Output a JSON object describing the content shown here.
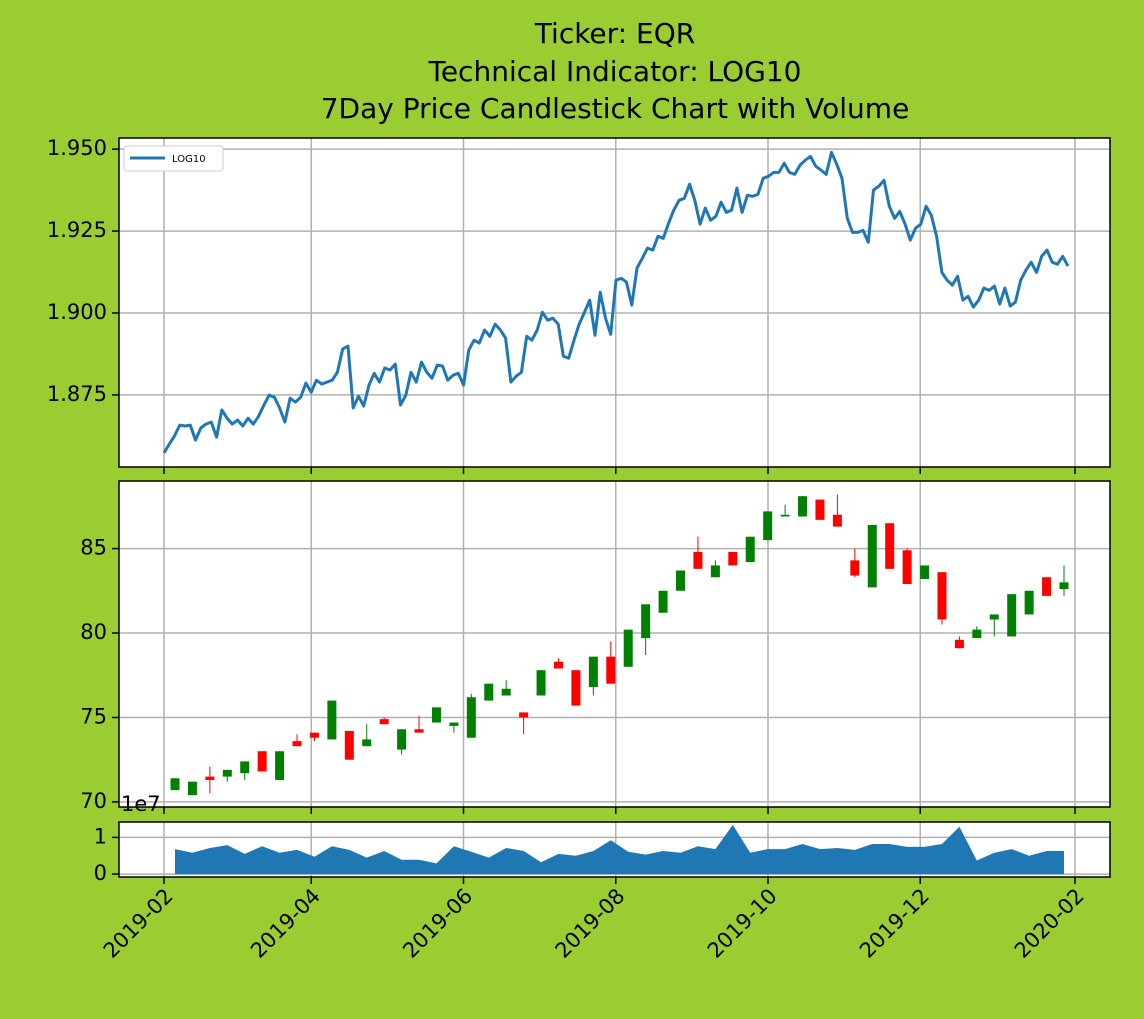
{
  "chart_data": [
    {
      "type": "line",
      "title": [
        "Ticker: EQR",
        "Technical Indicator: LOG10",
        "7Day Price Candlestick Chart with Volume"
      ],
      "ylim": [
        1.853,
        1.9534
      ],
      "yticks": [
        {
          "value": 1.95,
          "label": "1.950"
        },
        {
          "value": 1.925,
          "label": "1.925"
        },
        {
          "value": 1.9,
          "label": "1.900"
        },
        {
          "value": 1.875,
          "label": "1.875"
        }
      ],
      "grid": true,
      "legend": "upper left",
      "series": [
        {
          "name": "LOG10",
          "color": "#1f77b4",
          "values": [
            1.8573,
            1.86,
            1.8625,
            1.8658,
            1.8655,
            1.8658,
            1.8612,
            1.8649,
            1.8661,
            1.8667,
            1.8621,
            1.8704,
            1.8679,
            1.8661,
            1.8673,
            1.8655,
            1.8679,
            1.8661,
            1.8685,
            1.8719,
            1.8749,
            1.8743,
            1.871,
            1.8667,
            1.874,
            1.8728,
            1.8743,
            1.8786,
            1.8758,
            1.8795,
            1.8783,
            1.8789,
            1.8795,
            1.8819,
            1.889,
            1.8899,
            1.871,
            1.8746,
            1.8716,
            1.878,
            1.8816,
            1.8789,
            1.8832,
            1.8826,
            1.8844,
            1.8719,
            1.8749,
            1.8819,
            1.8789,
            1.885,
            1.8819,
            1.8801,
            1.8841,
            1.8838,
            1.8795,
            1.881,
            1.8816,
            1.878,
            1.8887,
            1.8917,
            1.8908,
            1.8948,
            1.8929,
            1.8966,
            1.8948,
            1.8923,
            1.8789,
            1.8807,
            1.8819,
            1.8929,
            1.8917,
            1.8948,
            1.9002,
            1.8978,
            1.8984,
            1.8966,
            1.8868,
            1.8862,
            1.8917,
            1.8966,
            1.9002,
            1.9039,
            1.8932,
            1.9063,
            1.8984,
            1.8935,
            1.91,
            1.9106,
            1.9094,
            1.9024,
            1.9137,
            1.9167,
            1.9198,
            1.9192,
            1.9234,
            1.9228,
            1.9274,
            1.9314,
            1.9344,
            1.935,
            1.9393,
            1.9344,
            1.9271,
            1.932,
            1.9283,
            1.9295,
            1.9338,
            1.9307,
            1.9314,
            1.9381,
            1.9307,
            1.9359,
            1.9356,
            1.9362,
            1.9411,
            1.9417,
            1.9429,
            1.9429,
            1.9457,
            1.9429,
            1.9423,
            1.9451,
            1.9466,
            1.9478,
            1.9448,
            1.9436,
            1.9423,
            1.949,
            1.9454,
            1.9411,
            1.9289,
            1.9246,
            1.9246,
            1.9252,
            1.9216,
            1.9375,
            1.9387,
            1.9405,
            1.9326,
            1.9289,
            1.931,
            1.9271,
            1.9222,
            1.9259,
            1.9271,
            1.9326,
            1.9298,
            1.9234,
            1.9124,
            1.91,
            1.9085,
            1.9112,
            1.9039,
            1.9051,
            1.9018,
            1.9039,
            1.9076,
            1.9069,
            1.9082,
            1.9027,
            1.9076,
            1.9021,
            1.9033,
            1.91,
            1.9131,
            1.9155,
            1.9124,
            1.9173,
            1.9192,
            1.9155,
            1.9149,
            1.9173,
            1.9143
          ]
        }
      ]
    },
    {
      "type": "candlestick",
      "ylim": [
        69.7,
        89.0
      ],
      "yticks": [
        70,
        75,
        80,
        85
      ],
      "grid": true,
      "up_color": "green",
      "down_color": "red",
      "open": [
        70.7,
        70.4,
        71.5,
        71.5,
        71.7,
        73.0,
        71.3,
        73.6,
        74.1,
        73.7,
        74.2,
        73.3,
        74.9,
        73.1,
        74.3,
        74.7,
        74.5,
        73.8,
        76.0,
        76.3,
        75.3,
        76.3,
        78.3,
        77.8,
        76.8,
        78.6,
        78.0,
        79.7,
        81.2,
        82.5,
        84.8,
        83.3,
        84.8,
        84.2,
        85.5,
        86.9,
        86.9,
        87.9,
        87.0,
        84.3,
        82.7,
        86.5,
        84.9,
        83.2,
        83.6,
        79.6,
        79.7,
        80.8,
        79.8,
        81.1,
        83.3,
        82.6
      ],
      "high": [
        71.4,
        71.2,
        72.1,
        71.9,
        72.4,
        73.0,
        73.0,
        74.0,
        74.1,
        76.0,
        74.2,
        74.6,
        75.0,
        74.3,
        75.1,
        75.6,
        74.7,
        76.4,
        77.0,
        77.2,
        75.3,
        77.8,
        78.5,
        77.8,
        78.6,
        79.5,
        80.2,
        81.7,
        82.5,
        83.7,
        85.7,
        84.3,
        84.8,
        85.7,
        87.2,
        87.6,
        88.1,
        87.9,
        88.2,
        85.0,
        86.4,
        86.5,
        85.0,
        84.0,
        83.6,
        79.8,
        80.4,
        81.1,
        82.3,
        82.5,
        83.3,
        84.0
      ],
      "low": [
        70.7,
        70.4,
        70.5,
        71.2,
        71.3,
        71.8,
        71.3,
        73.3,
        73.6,
        73.7,
        72.5,
        73.3,
        74.6,
        72.8,
        74.1,
        74.7,
        74.1,
        73.8,
        76.0,
        76.3,
        74.0,
        76.3,
        77.9,
        75.7,
        76.3,
        77.0,
        78.0,
        78.7,
        81.2,
        82.5,
        83.8,
        83.3,
        84.0,
        84.2,
        85.5,
        86.9,
        86.9,
        86.7,
        86.3,
        83.3,
        82.7,
        83.8,
        82.9,
        83.2,
        80.5,
        79.1,
        79.7,
        79.8,
        79.8,
        81.1,
        82.2,
        82.2
      ],
      "close": [
        71.4,
        71.2,
        71.3,
        71.9,
        72.4,
        71.8,
        73.0,
        73.3,
        73.8,
        76.0,
        72.5,
        73.7,
        74.6,
        74.3,
        74.1,
        75.6,
        74.7,
        76.2,
        77.0,
        76.7,
        75.0,
        77.8,
        77.9,
        75.7,
        78.6,
        77.0,
        80.2,
        81.7,
        82.5,
        83.7,
        83.8,
        84.0,
        84.0,
        85.7,
        87.2,
        87.0,
        88.1,
        86.7,
        86.3,
        83.4,
        86.4,
        83.8,
        82.9,
        84.0,
        80.8,
        79.1,
        80.2,
        81.1,
        82.3,
        82.5,
        82.2,
        83.0
      ]
    },
    {
      "type": "area",
      "ylim": [
        -800000,
        14200000
      ],
      "yticks": [
        0,
        {
          "value": 10000000,
          "label": "1"
        }
      ],
      "offset_label": "1e7",
      "grid": true,
      "xticks": [
        "2019-02",
        "2019-04",
        "2019-06",
        "2019-08",
        "2019-10",
        "2019-12",
        "2020-02"
      ],
      "color": "#1f77b4",
      "values": [
        6800000,
        5800000,
        7100000,
        7900000,
        5500000,
        7600000,
        5800000,
        6600000,
        4700000,
        7600000,
        6600000,
        4500000,
        6300000,
        3900000,
        3900000,
        2900000,
        7600000,
        6100000,
        4500000,
        7100000,
        6300000,
        3200000,
        5500000,
        5000000,
        6300000,
        9200000,
        6100000,
        5300000,
        6300000,
        5800000,
        7600000,
        6800000,
        13400000,
        5800000,
        6800000,
        6800000,
        8200000,
        6800000,
        7100000,
        6600000,
        8200000,
        8200000,
        7400000,
        7400000,
        8200000,
        12900000,
        3700000,
        5800000,
        6800000,
        5000000,
        6300000,
        6300000
      ]
    }
  ]
}
